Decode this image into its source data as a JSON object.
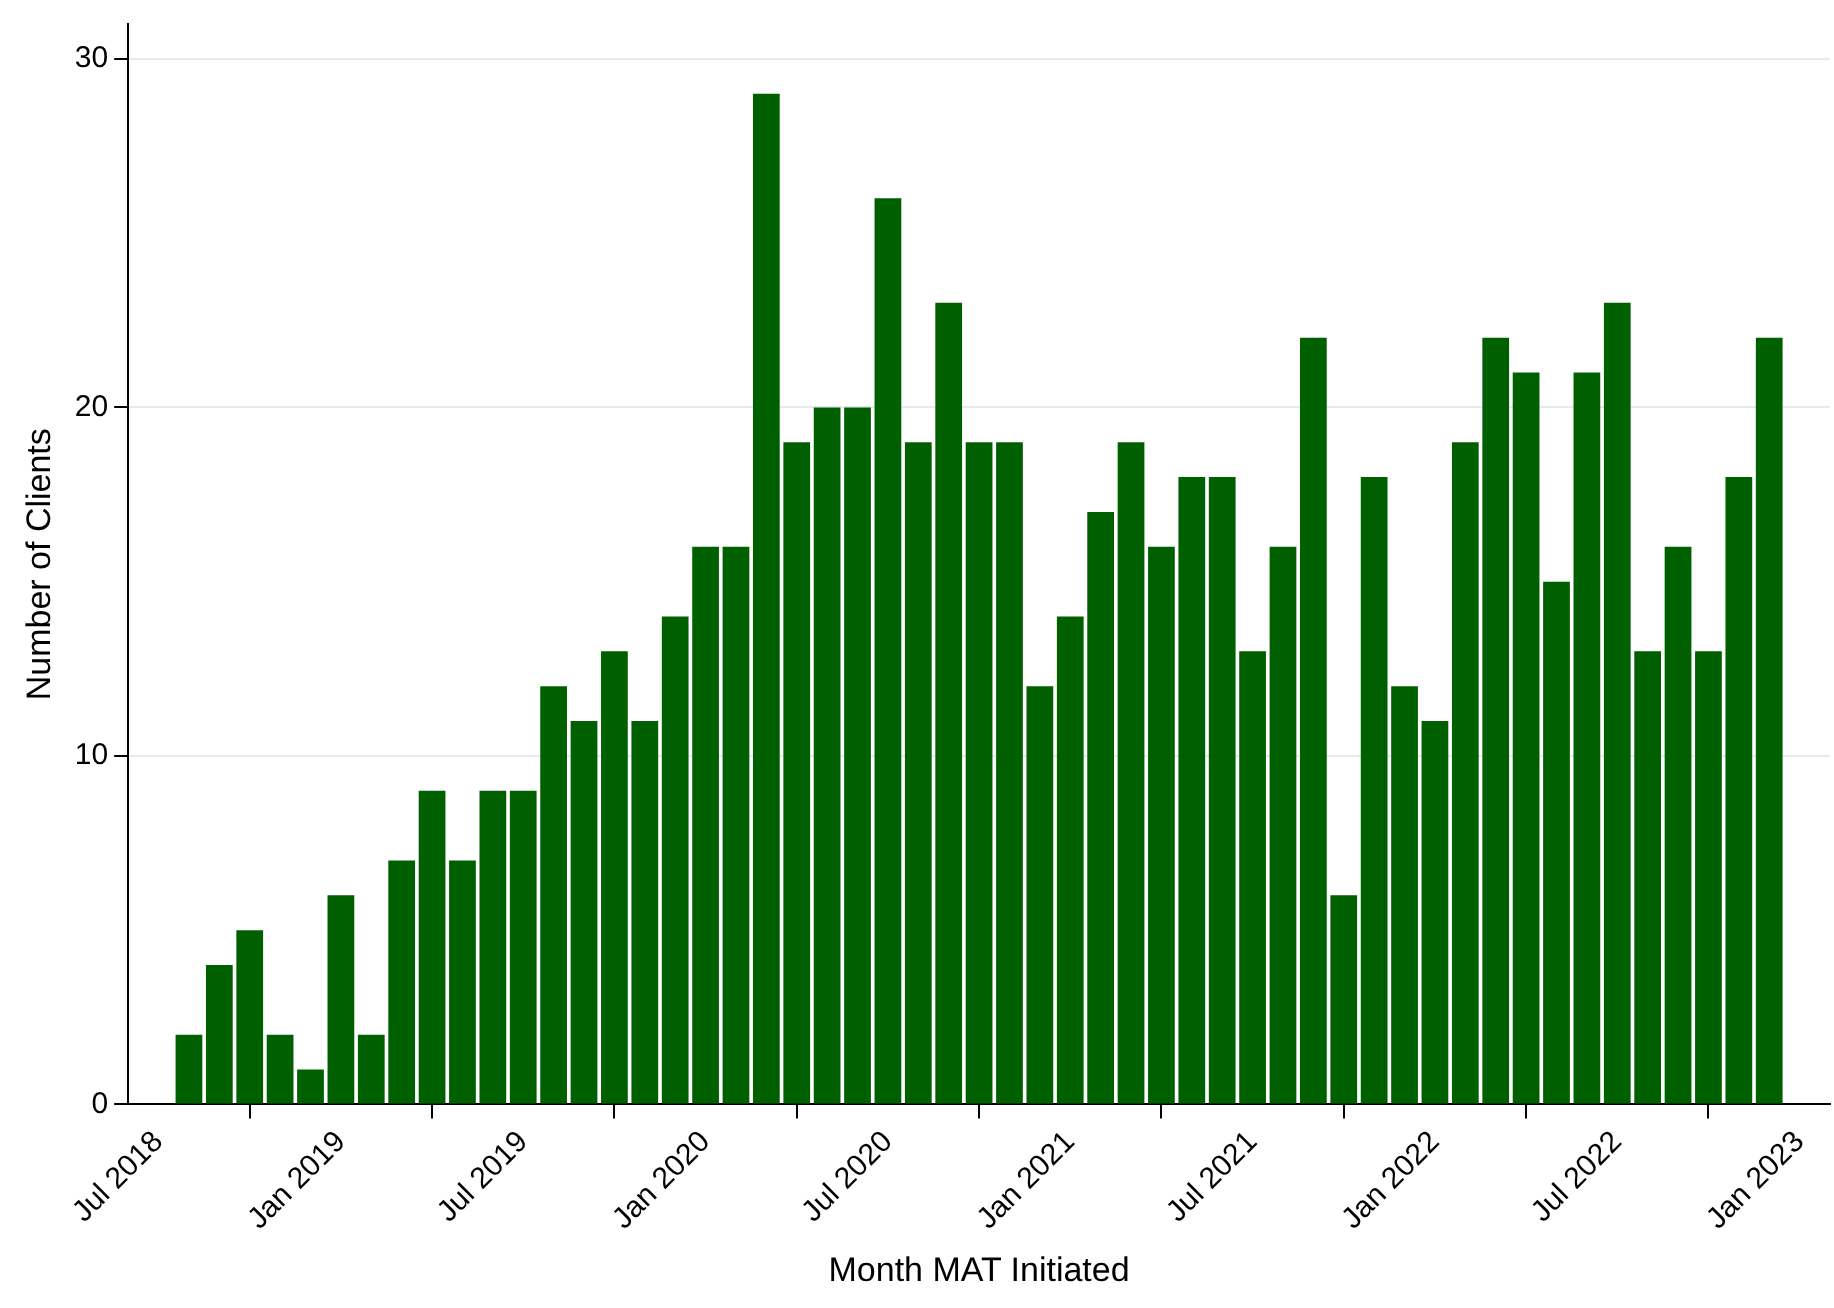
{
  "chart_data": {
    "type": "bar",
    "xlabel": "Month MAT Initiated",
    "ylabel": "Number of Clients",
    "x": [
      "2018-08",
      "2018-09",
      "2018-10",
      "2018-11",
      "2018-12",
      "2019-01",
      "2019-02",
      "2019-03",
      "2019-04",
      "2019-05",
      "2019-06",
      "2019-07",
      "2019-08",
      "2019-09",
      "2019-10",
      "2019-11",
      "2019-12",
      "2020-01",
      "2020-02",
      "2020-03",
      "2020-04",
      "2020-05",
      "2020-06",
      "2020-07",
      "2020-08",
      "2020-09",
      "2020-10",
      "2020-11",
      "2020-12",
      "2021-01",
      "2021-02",
      "2021-03",
      "2021-04",
      "2021-05",
      "2021-06",
      "2021-07",
      "2021-08",
      "2021-09",
      "2021-10",
      "2021-11",
      "2021-12",
      "2022-01",
      "2022-02",
      "2022-03",
      "2022-04",
      "2022-05",
      "2022-06",
      "2022-07",
      "2022-08",
      "2022-09",
      "2022-10",
      "2022-11",
      "2022-12"
    ],
    "values": [
      2,
      4,
      5,
      2,
      1,
      6,
      2,
      7,
      9,
      7,
      9,
      9,
      12,
      11,
      13,
      11,
      14,
      16,
      16,
      29,
      19,
      20,
      20,
      26,
      19,
      23,
      19,
      19,
      12,
      14,
      17,
      19,
      16,
      18,
      18,
      13,
      16,
      22,
      6,
      18,
      12,
      11,
      19,
      22,
      21,
      15,
      21,
      23,
      13,
      16,
      13,
      18,
      22
    ],
    "color": "#006000",
    "xlim": [
      "2018-06",
      "2023-02"
    ],
    "xticks": [
      {
        "value": "2018-07",
        "label": "Jul 2018"
      },
      {
        "value": "2019-01",
        "label": "Jan 2019"
      },
      {
        "value": "2019-07",
        "label": "Jul 2019"
      },
      {
        "value": "2020-01",
        "label": "Jan 2020"
      },
      {
        "value": "2020-07",
        "label": "Jul 2020"
      },
      {
        "value": "2021-01",
        "label": "Jan 2021"
      },
      {
        "value": "2021-07",
        "label": "Jul 2021"
      },
      {
        "value": "2022-01",
        "label": "Jan 2022"
      },
      {
        "value": "2022-07",
        "label": "Jul 2022"
      },
      {
        "value": "2023-01",
        "label": "Jan 2023"
      }
    ],
    "ylim": [
      0,
      31
    ],
    "yticks": [
      0,
      10,
      20,
      30
    ],
    "grid": "y"
  }
}
